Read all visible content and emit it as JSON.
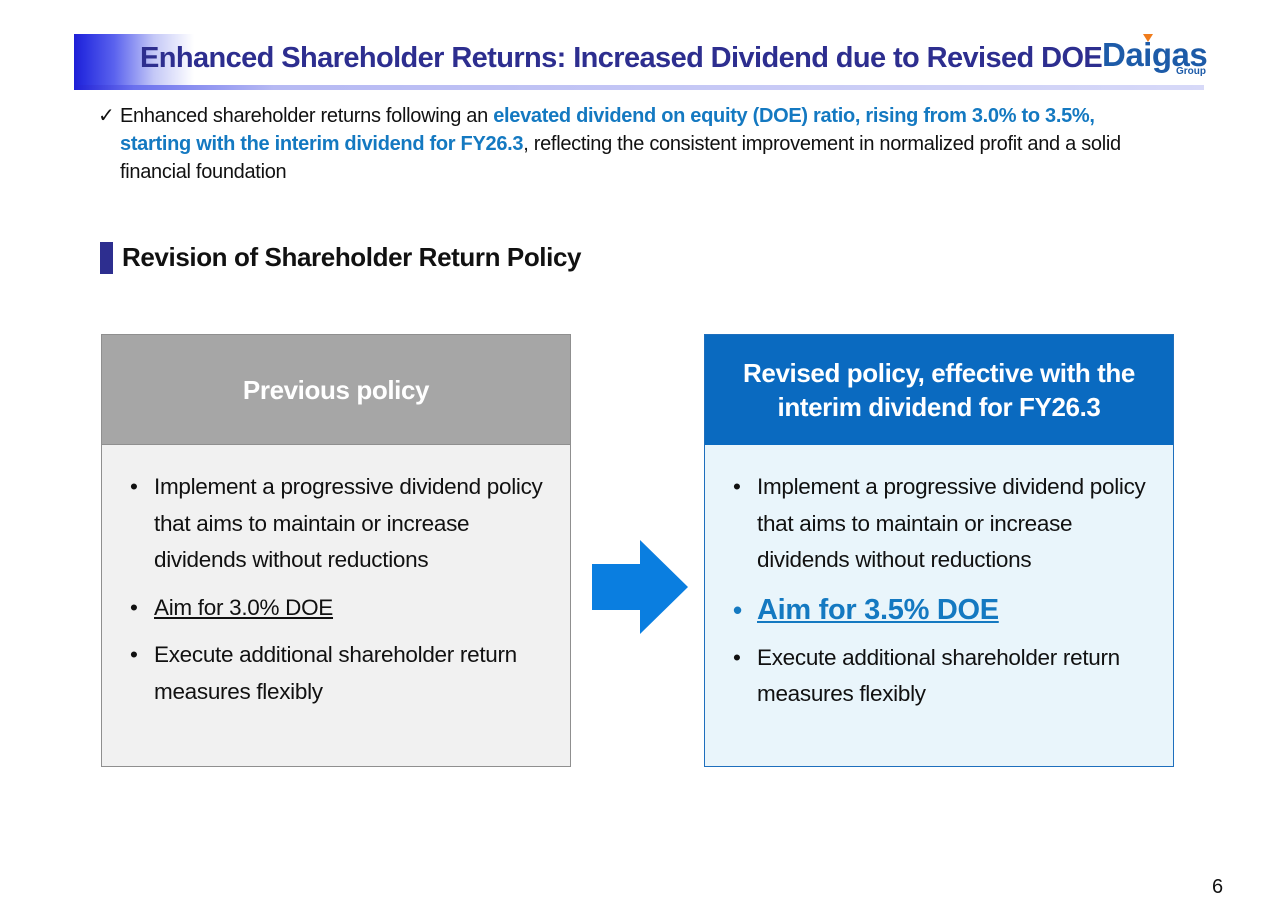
{
  "header": {
    "title": "Enhanced Shareholder Returns: Increased Dividend due to Revised DOE",
    "logo_text": "Daigas",
    "logo_sub": "Group"
  },
  "summary": {
    "check_icon": "check-icon",
    "part1": "Enhanced shareholder returns following an ",
    "highlight": "elevated dividend on equity (DOE) ratio, rising from 3.0% to 3.5%, starting with the interim dividend for FY26.3",
    "part2": ", reflecting the consistent improvement in normalized profit and a solid financial foundation"
  },
  "section": {
    "title": "Revision of Shareholder Return Policy"
  },
  "previous_policy": {
    "heading": "Previous policy",
    "items": [
      "Implement a progressive dividend policy that aims to maintain or increase dividends without reductions",
      "Aim for 3.0% DOE",
      "Execute additional shareholder return measures flexibly"
    ]
  },
  "revised_policy": {
    "heading": "Revised policy, effective with the interim dividend for FY26.3",
    "items": [
      "Implement a progressive dividend policy that aims to maintain or increase dividends without reductions",
      "Aim for 3.5% DOE",
      "Execute additional shareholder return measures flexibly"
    ]
  },
  "footer": {
    "page_number": "6"
  },
  "colors": {
    "title_text": "#2d2e8f",
    "highlight": "#1479c1",
    "revised_header": "#0a6ac0",
    "previous_header": "#a6a6a6",
    "arrow": "#0a7ee0"
  }
}
